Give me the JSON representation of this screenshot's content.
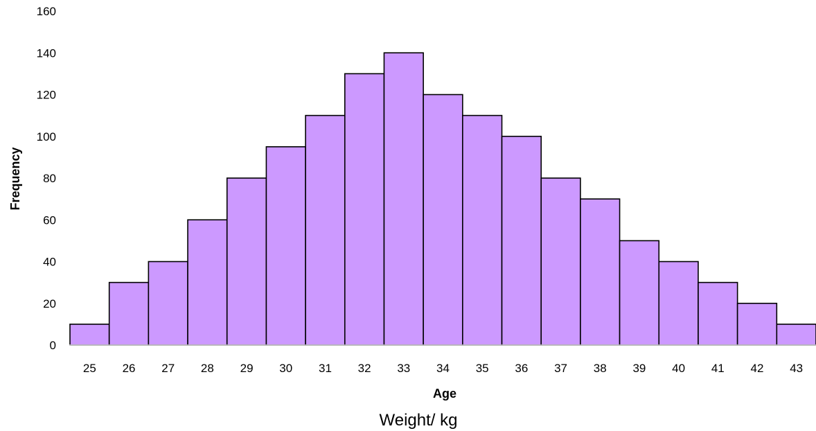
{
  "chart_data": {
    "type": "bar",
    "title": "",
    "xlabel": "Age",
    "ylabel": "Frequency",
    "caption": "Weight/ kg",
    "categories": [
      "25",
      "26",
      "27",
      "28",
      "29",
      "30",
      "31",
      "32",
      "33",
      "34",
      "35",
      "36",
      "37",
      "38",
      "39",
      "40",
      "41",
      "42",
      "43"
    ],
    "values": [
      10,
      30,
      40,
      60,
      80,
      95,
      110,
      130,
      140,
      120,
      110,
      100,
      80,
      70,
      50,
      40,
      30,
      20,
      10
    ],
    "ylim": [
      0,
      160
    ],
    "yticks": [
      0,
      20,
      40,
      60,
      80,
      100,
      120,
      140,
      160
    ],
    "grid": false,
    "bar_color": "#CC99FF",
    "edge_color": "#000000"
  }
}
